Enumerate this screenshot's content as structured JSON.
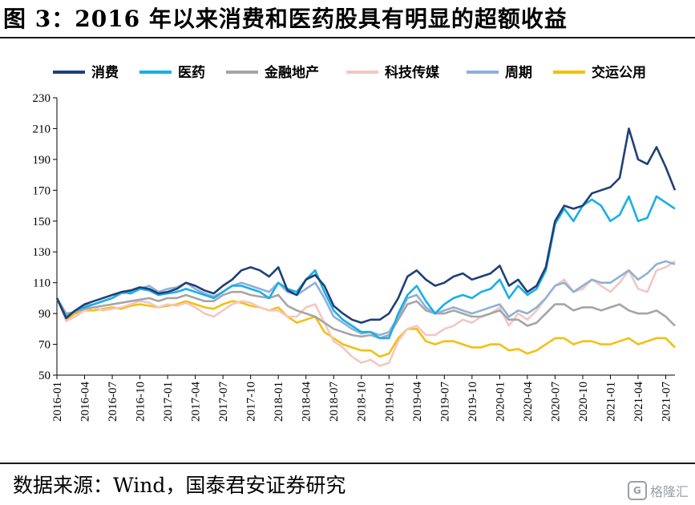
{
  "header": {
    "title": "图 3：2016 年以来消费和医药股具有明显的超额收益"
  },
  "footer": {
    "source": "数据来源：Wind，国泰君安证券研究"
  },
  "watermark": {
    "badge": "G",
    "text": "格隆汇"
  },
  "chart_data": {
    "type": "line",
    "ylim": [
      50,
      230
    ],
    "yticks": [
      50,
      70,
      90,
      110,
      130,
      150,
      170,
      190,
      210,
      230
    ],
    "x": [
      "2016-01",
      "2016-02",
      "2016-03",
      "2016-04",
      "2016-05",
      "2016-06",
      "2016-07",
      "2016-08",
      "2016-09",
      "2016-10",
      "2016-11",
      "2016-12",
      "2017-01",
      "2017-02",
      "2017-03",
      "2017-04",
      "2017-05",
      "2017-06",
      "2017-07",
      "2017-08",
      "2017-09",
      "2017-10",
      "2017-11",
      "2017-12",
      "2018-01",
      "2018-02",
      "2018-03",
      "2018-04",
      "2018-05",
      "2018-06",
      "2018-07",
      "2018-08",
      "2018-09",
      "2018-10",
      "2018-11",
      "2018-12",
      "2019-01",
      "2019-02",
      "2019-03",
      "2019-04",
      "2019-05",
      "2019-06",
      "2019-07",
      "2019-08",
      "2019-09",
      "2019-10",
      "2019-11",
      "2019-12",
      "2020-01",
      "2020-02",
      "2020-03",
      "2020-04",
      "2020-05",
      "2020-06",
      "2020-07",
      "2020-08",
      "2020-09",
      "2020-10",
      "2020-11",
      "2020-12",
      "2021-01",
      "2021-02",
      "2021-03",
      "2021-04",
      "2021-05",
      "2021-06",
      "2021-07",
      "2021-08"
    ],
    "xticks": [
      "2016-01",
      "2016-04",
      "2016-07",
      "2016-10",
      "2017-01",
      "2017-04",
      "2017-07",
      "2017-10",
      "2018-01",
      "2018-04",
      "2018-07",
      "2018-10",
      "2019-01",
      "2019-04",
      "2019-07",
      "2019-10",
      "2020-01",
      "2020-04",
      "2020-07",
      "2020-10",
      "2021-01",
      "2021-04",
      "2021-07"
    ],
    "series": [
      {
        "name": "消费",
        "color": "#1f3f77",
        "values": [
          100,
          87,
          92,
          96,
          98,
          100,
          102,
          104,
          105,
          107,
          106,
          103,
          104,
          106,
          110,
          108,
          105,
          103,
          108,
          112,
          118,
          120,
          118,
          114,
          120,
          105,
          102,
          112,
          115,
          108,
          95,
          90,
          86,
          84,
          86,
          86,
          90,
          100,
          114,
          118,
          112,
          108,
          110,
          114,
          116,
          112,
          114,
          116,
          121,
          108,
          112,
          104,
          108,
          120,
          150,
          160,
          158,
          160,
          168,
          170,
          172,
          178,
          210,
          190,
          187,
          198,
          185,
          170
        ]
      },
      {
        "name": "医药",
        "color": "#1aaee6",
        "values": [
          100,
          88,
          92,
          94,
          96,
          98,
          100,
          104,
          103,
          106,
          105,
          102,
          103,
          104,
          106,
          104,
          102,
          100,
          104,
          108,
          108,
          106,
          104,
          100,
          110,
          106,
          104,
          112,
          118,
          104,
          92,
          86,
          82,
          78,
          78,
          74,
          74,
          90,
          102,
          108,
          98,
          90,
          96,
          100,
          102,
          100,
          104,
          106,
          112,
          100,
          108,
          102,
          106,
          118,
          148,
          158,
          150,
          160,
          164,
          160,
          150,
          154,
          166,
          150,
          152,
          166,
          162,
          158
        ]
      },
      {
        "name": "金融地产",
        "color": "#a5a5a5",
        "values": [
          100,
          90,
          91,
          93,
          94,
          95,
          96,
          97,
          98,
          99,
          100,
          98,
          100,
          100,
          102,
          100,
          98,
          98,
          102,
          104,
          104,
          102,
          101,
          100,
          102,
          95,
          92,
          90,
          88,
          84,
          80,
          78,
          76,
          75,
          76,
          74,
          76,
          86,
          96,
          98,
          92,
          90,
          90,
          92,
          90,
          88,
          88,
          90,
          92,
          86,
          86,
          82,
          84,
          90,
          96,
          96,
          92,
          94,
          94,
          92,
          94,
          96,
          92,
          90,
          90,
          92,
          88,
          82
        ]
      },
      {
        "name": "科技传媒",
        "color": "#f0c8c3",
        "values": [
          100,
          85,
          88,
          92,
          94,
          92,
          93,
          94,
          96,
          98,
          97,
          94,
          96,
          95,
          97,
          94,
          90,
          88,
          92,
          96,
          98,
          97,
          94,
          92,
          92,
          88,
          88,
          94,
          96,
          84,
          72,
          68,
          62,
          58,
          60,
          56,
          58,
          72,
          80,
          82,
          76,
          76,
          80,
          82,
          86,
          84,
          88,
          90,
          94,
          82,
          90,
          86,
          92,
          100,
          108,
          112,
          104,
          106,
          112,
          108,
          104,
          110,
          118,
          106,
          104,
          118,
          120,
          124
        ]
      },
      {
        "name": "周期",
        "color": "#8fb0d6",
        "values": [
          100,
          88,
          92,
          95,
          96,
          98,
          100,
          103,
          104,
          106,
          108,
          104,
          106,
          107,
          110,
          106,
          103,
          101,
          104,
          108,
          110,
          108,
          106,
          104,
          110,
          104,
          102,
          106,
          110,
          100,
          88,
          84,
          80,
          77,
          78,
          76,
          78,
          88,
          100,
          102,
          94,
          90,
          92,
          94,
          92,
          90,
          92,
          94,
          96,
          88,
          92,
          90,
          94,
          100,
          108,
          110,
          104,
          108,
          112,
          110,
          110,
          114,
          118,
          112,
          116,
          122,
          124,
          122
        ]
      },
      {
        "name": "交运公用",
        "color": "#f5bf10",
        "values": [
          100,
          86,
          90,
          92,
          92,
          93,
          94,
          93,
          95,
          96,
          95,
          94,
          95,
          96,
          98,
          96,
          94,
          93,
          96,
          98,
          97,
          95,
          94,
          92,
          94,
          88,
          84,
          86,
          88,
          78,
          74,
          70,
          68,
          66,
          66,
          62,
          64,
          74,
          80,
          80,
          72,
          70,
          72,
          72,
          70,
          68,
          68,
          70,
          70,
          66,
          67,
          64,
          66,
          70,
          74,
          74,
          70,
          72,
          72,
          70,
          70,
          72,
          74,
          70,
          72,
          74,
          74,
          68
        ]
      }
    ]
  }
}
